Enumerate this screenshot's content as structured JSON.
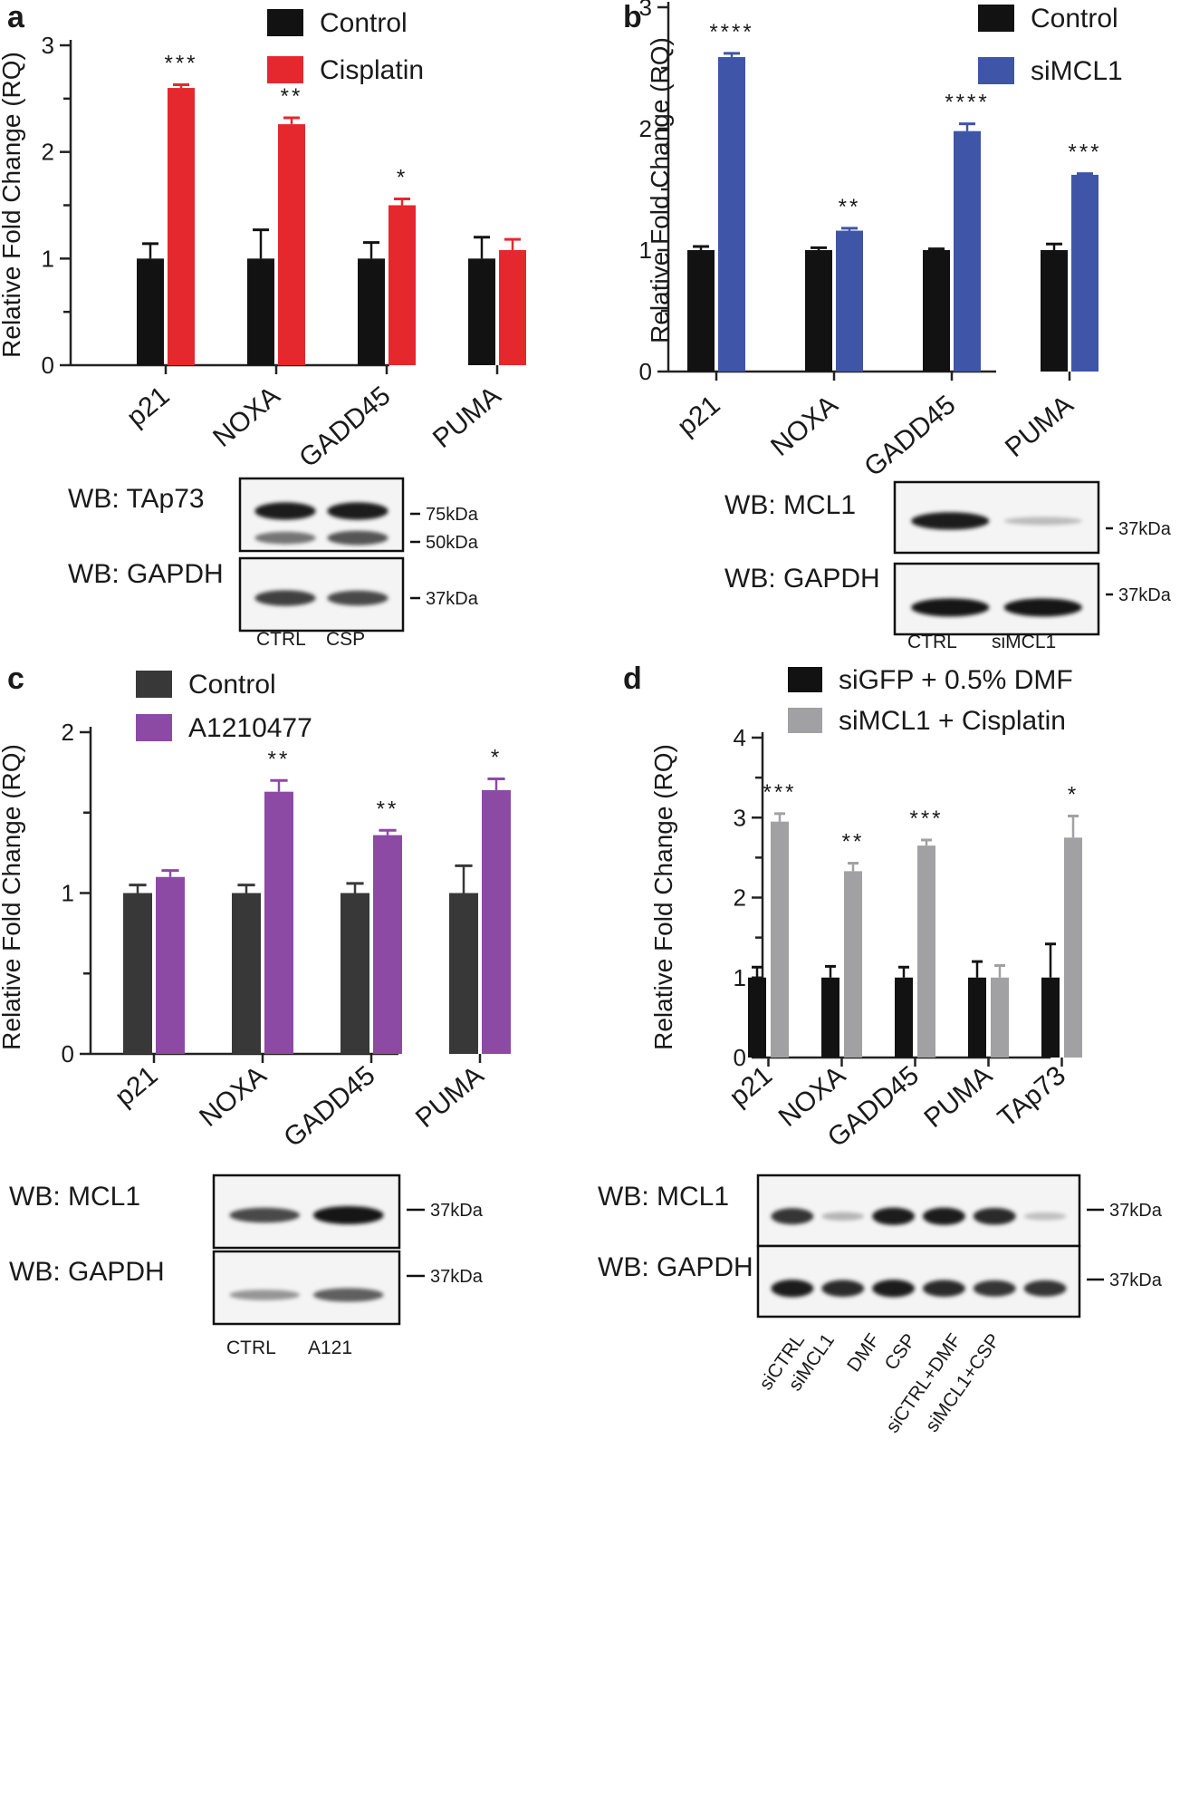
{
  "chart_data": [
    {
      "panel": "a",
      "type": "bar",
      "ylabel": "Relative Fold Change (RQ)",
      "ylim": [
        0,
        3
      ],
      "yticks": [
        "0",
        "1",
        "2",
        "3"
      ],
      "categories": [
        "p21",
        "NOXA",
        "GADD45",
        "PUMA"
      ],
      "series": [
        {
          "name": "Control",
          "color": "#121212",
          "values": [
            1.0,
            1.0,
            1.0,
            1.0
          ],
          "errors": [
            0.14,
            0.27,
            0.15,
            0.2
          ]
        },
        {
          "name": "Cisplatin",
          "color": "#e5282e",
          "values": [
            2.6,
            2.26,
            1.5,
            1.08
          ],
          "errors": [
            0.03,
            0.06,
            0.06,
            0.1
          ]
        }
      ],
      "significance": [
        "***",
        "**",
        "*",
        ""
      ],
      "blot": {
        "rows": [
          {
            "label": "WB: TAp73",
            "markers": [
              "75kDa",
              "50kDa"
            ]
          },
          {
            "label": "WB: GAPDH",
            "markers": [
              "37kDa"
            ]
          }
        ],
        "lanes": [
          "CTRL",
          "CSP"
        ]
      }
    },
    {
      "panel": "b",
      "type": "bar",
      "ylabel": "Relative Fold Change (RQ)",
      "ylim": [
        0,
        3
      ],
      "yticks": [
        "0",
        "1",
        "2",
        "3"
      ],
      "categories": [
        "p21",
        "NOXA",
        "GADD45",
        "PUMA"
      ],
      "series": [
        {
          "name": "Control",
          "color": "#121212",
          "values": [
            1.0,
            1.0,
            1.0,
            1.0
          ],
          "errors": [
            0.03,
            0.02,
            0.01,
            0.05
          ]
        },
        {
          "name": "siMCL1",
          "color": "#3f55a8",
          "values": [
            2.59,
            1.16,
            1.98,
            1.62
          ],
          "errors": [
            0.03,
            0.02,
            0.06,
            0.01
          ]
        }
      ],
      "significance": [
        "****",
        "**",
        "****",
        "***"
      ],
      "blot": {
        "rows": [
          {
            "label": "WB: MCL1",
            "markers": [
              "37kDa"
            ]
          },
          {
            "label": "WB: GAPDH",
            "markers": [
              "37kDa"
            ]
          }
        ],
        "lanes": [
          "CTRL",
          "siMCL1"
        ]
      }
    },
    {
      "panel": "c",
      "type": "bar",
      "ylabel": "Relative Fold Change (RQ)",
      "ylim": [
        0,
        2
      ],
      "yticks": [
        "0",
        "1",
        "2"
      ],
      "categories": [
        "p21",
        "NOXA",
        "GADD45",
        "PUMA"
      ],
      "series": [
        {
          "name": "Control",
          "color": "#383838",
          "values": [
            1.0,
            1.0,
            1.0,
            1.0
          ],
          "errors": [
            0.05,
            0.05,
            0.06,
            0.17
          ]
        },
        {
          "name": "A1210477",
          "color": "#8c4aa4",
          "values": [
            1.1,
            1.63,
            1.36,
            1.64
          ],
          "errors": [
            0.04,
            0.07,
            0.03,
            0.07
          ]
        }
      ],
      "significance": [
        "",
        "**",
        "**",
        "*"
      ],
      "blot": {
        "rows": [
          {
            "label": "WB: MCL1",
            "markers": [
              "37kDa"
            ]
          },
          {
            "label": "WB: GAPDH",
            "markers": [
              "37kDa"
            ]
          }
        ],
        "lanes": [
          "CTRL",
          "A121"
        ]
      }
    },
    {
      "panel": "d",
      "type": "bar",
      "ylabel": "Relative Fold Change (RQ)",
      "ylim": [
        0,
        4
      ],
      "yticks": [
        "0",
        "1",
        "2",
        "3",
        "4"
      ],
      "categories": [
        "p21",
        "NOXA",
        "GADD45",
        "PUMA",
        "TAp73"
      ],
      "series": [
        {
          "name": "siGFP + 0.5% DMF",
          "color": "#121212",
          "values": [
            1.0,
            1.0,
            1.0,
            1.0,
            1.0
          ],
          "errors": [
            0.13,
            0.14,
            0.13,
            0.2,
            0.42
          ]
        },
        {
          "name": "siMCL1 + Cisplatin",
          "color": "#a1a1a3",
          "values": [
            2.95,
            2.33,
            2.65,
            1.0,
            2.75
          ],
          "errors": [
            0.1,
            0.1,
            0.07,
            0.15,
            0.27
          ]
        }
      ],
      "significance": [
        "***",
        "**",
        "***",
        "",
        "*"
      ],
      "blot": {
        "rows": [
          {
            "label": "WB: MCL1",
            "markers": [
              "37kDa"
            ]
          },
          {
            "label": "WB: GAPDH",
            "markers": [
              "37kDa"
            ]
          }
        ],
        "lanes": [
          "siCTRL",
          "siMCL1",
          "DMF",
          "CSP",
          "siCTRL+DMF",
          "siMCL1+CSP"
        ]
      }
    }
  ]
}
